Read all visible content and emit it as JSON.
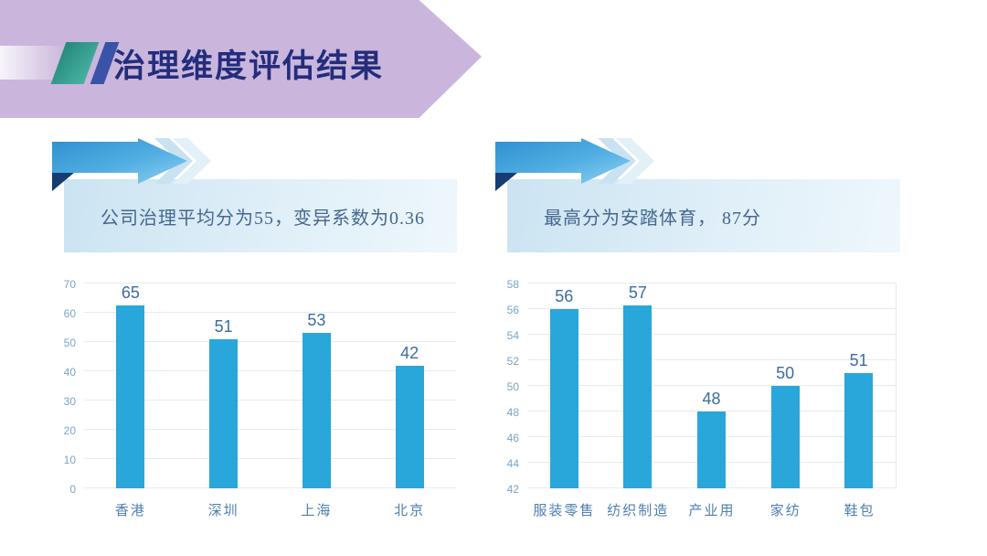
{
  "slide": {
    "title": "治理维度评估结果",
    "colors": {
      "banner": "#cab6dc",
      "title_text": "#232d7d",
      "slash_teal": "#35a193",
      "slash_blue": "#3a52a8",
      "bar": "#29a6da",
      "callout_text": "#46678e",
      "axis_label": "#7ba3c4",
      "value_label": "#3c6ca3"
    }
  },
  "callouts": [
    {
      "text": "公司治理平均分为55，变异系数为0.36"
    },
    {
      "text": "最高分为安踏体育， 87分"
    }
  ],
  "chart_data": [
    {
      "type": "bar",
      "title": "",
      "categories": [
        "香港",
        "深圳",
        "上海",
        "北京"
      ],
      "values": [
        65,
        51,
        53,
        42
      ],
      "xlabel": "",
      "ylabel": "",
      "ylim": [
        0,
        70
      ],
      "ytick_step": 10,
      "grid": true,
      "legend": false,
      "right_border": false
    },
    {
      "type": "bar",
      "title": "",
      "categories": [
        "服装零售",
        "纺织制造",
        "产业用",
        "家纺",
        "鞋包"
      ],
      "values": [
        56,
        57,
        48,
        50,
        51
      ],
      "xlabel": "",
      "ylabel": "",
      "ylim": [
        42,
        58
      ],
      "ytick_step": 2,
      "grid": true,
      "legend": false,
      "right_border": true
    }
  ]
}
